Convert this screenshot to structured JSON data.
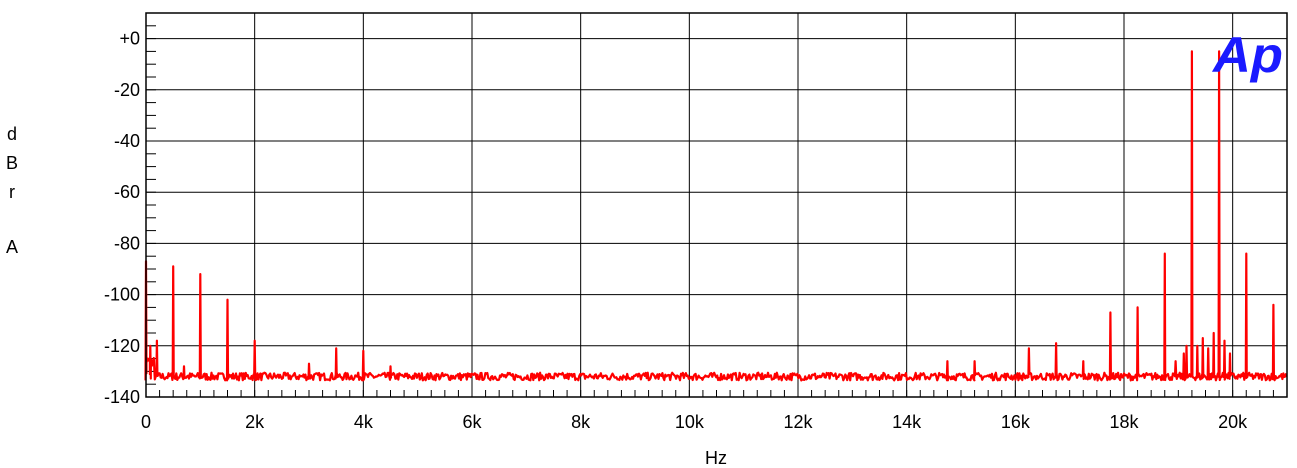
{
  "chart_data": {
    "type": "line",
    "title": "",
    "xlabel": "Hz",
    "ylabel": "dBr A",
    "xlim": [
      0,
      21000
    ],
    "ylim": [
      -140,
      10
    ],
    "x_ticks": [
      0,
      2000,
      4000,
      6000,
      8000,
      10000,
      12000,
      14000,
      16000,
      18000,
      20000
    ],
    "x_tick_labels": [
      "0",
      "2k",
      "4k",
      "6k",
      "8k",
      "10k",
      "12k",
      "14k",
      "16k",
      "18k",
      "20k"
    ],
    "y_ticks": [
      0,
      -20,
      -40,
      -60,
      -80,
      -100,
      -120,
      -140
    ],
    "y_tick_labels": [
      "+0",
      "-20",
      "-40",
      "-60",
      "-80",
      "-100",
      "-120",
      "-140"
    ],
    "grid": true,
    "noise_floor": -132,
    "series": [
      {
        "color": "#ff0000",
        "peaks": [
          {
            "x": 0,
            "y": -87
          },
          {
            "x": 80,
            "y": -120
          },
          {
            "x": 200,
            "y": -118
          },
          {
            "x": 500,
            "y": -89
          },
          {
            "x": 700,
            "y": -128
          },
          {
            "x": 1000,
            "y": -92
          },
          {
            "x": 1500,
            "y": -102
          },
          {
            "x": 2000,
            "y": -118
          },
          {
            "x": 3000,
            "y": -127
          },
          {
            "x": 3500,
            "y": -121
          },
          {
            "x": 4000,
            "y": -122
          },
          {
            "x": 4500,
            "y": -128
          },
          {
            "x": 14750,
            "y": -126
          },
          {
            "x": 15250,
            "y": -126
          },
          {
            "x": 16250,
            "y": -121
          },
          {
            "x": 16750,
            "y": -119
          },
          {
            "x": 17250,
            "y": -126
          },
          {
            "x": 17750,
            "y": -107
          },
          {
            "x": 18250,
            "y": -105
          },
          {
            "x": 18750,
            "y": -84
          },
          {
            "x": 18950,
            "y": -126
          },
          {
            "x": 19100,
            "y": -123
          },
          {
            "x": 19150,
            "y": -120
          },
          {
            "x": 19250,
            "y": -5
          },
          {
            "x": 19350,
            "y": -120
          },
          {
            "x": 19450,
            "y": -117
          },
          {
            "x": 19550,
            "y": -121
          },
          {
            "x": 19650,
            "y": -115
          },
          {
            "x": 19750,
            "y": -5
          },
          {
            "x": 19850,
            "y": -118
          },
          {
            "x": 19950,
            "y": -123
          },
          {
            "x": 20250,
            "y": -84
          },
          {
            "x": 20750,
            "y": -104
          }
        ]
      }
    ]
  },
  "logo": {
    "text": "Ap",
    "color": "#1a1aff"
  }
}
